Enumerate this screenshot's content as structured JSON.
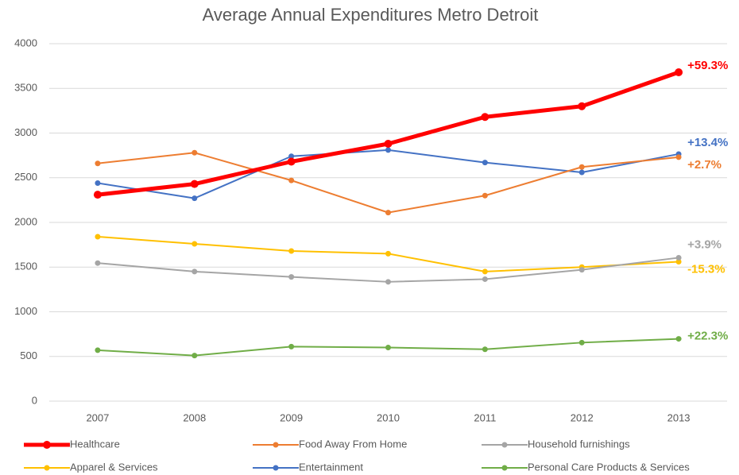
{
  "chart_data": {
    "type": "line",
    "title": "Average Annual Expenditures Metro Detroit",
    "x": [
      "2007",
      "2008",
      "2009",
      "2010",
      "2011",
      "2012",
      "2013"
    ],
    "ylim": [
      0,
      4000
    ],
    "yticks": [
      0,
      500,
      1000,
      1500,
      2000,
      2500,
      3000,
      3500,
      4000
    ],
    "grid": true,
    "legend": "bottom",
    "series": [
      {
        "name": "Healthcare",
        "color": "#ff0000",
        "values": [
          2310,
          2430,
          2680,
          2880,
          3180,
          3300,
          3680
        ],
        "change_label": "+59.3%"
      },
      {
        "name": "Food Away From Home",
        "color": "#ed7d31",
        "values": [
          2660,
          2780,
          2470,
          2110,
          2300,
          2620,
          2730
        ],
        "change_label": "+2.7%"
      },
      {
        "name": "Household furnishings",
        "color": "#a5a5a5",
        "values": [
          1545,
          1450,
          1390,
          1335,
          1365,
          1470,
          1605
        ],
        "change_label": "+3.9%"
      },
      {
        "name": "Apparel & Services",
        "color": "#ffc000",
        "values": [
          1840,
          1760,
          1680,
          1650,
          1450,
          1500,
          1560
        ],
        "change_label": "-15.3%"
      },
      {
        "name": "Entertainment",
        "color": "#4472c4",
        "values": [
          2440,
          2270,
          2740,
          2810,
          2670,
          2560,
          2765
        ],
        "change_label": "+13.4%"
      },
      {
        "name": "Personal Care Products & Services",
        "color": "#70ad47",
        "values": [
          570,
          510,
          610,
          600,
          580,
          655,
          697
        ],
        "change_label": "+22.3%"
      }
    ]
  }
}
